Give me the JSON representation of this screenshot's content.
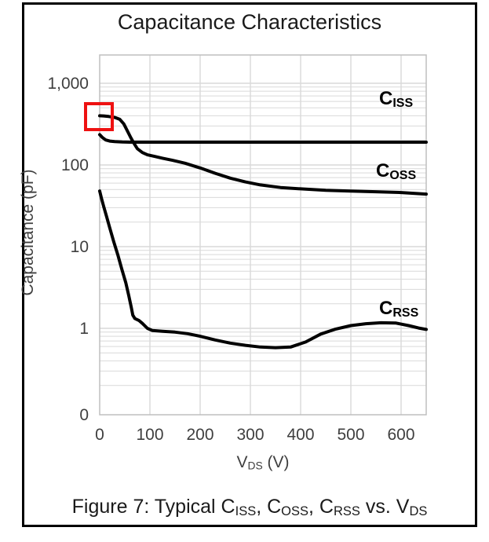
{
  "figure": {
    "title": "Capacitance Characteristics",
    "caption_segments": [
      {
        "t": "Figure 7: Typical C"
      },
      {
        "t": "ISS",
        "sub": true
      },
      {
        "t": ", C"
      },
      {
        "t": "OSS",
        "sub": true
      },
      {
        "t": ", C"
      },
      {
        "t": "RSS",
        "sub": true
      },
      {
        "t": " vs. V"
      },
      {
        "t": "DS",
        "sub": true
      }
    ],
    "border_color": "#000000",
    "background_color": "#ffffff"
  },
  "chart_data": {
    "type": "line",
    "title": "Capacitance Characteristics",
    "ylabel": "Capacitance (pF)",
    "xlabel_segments": [
      {
        "t": "V"
      },
      {
        "t": "DS",
        "sub": true
      },
      {
        "t": " (V)"
      }
    ],
    "x_scale": "linear",
    "y_scale": "log",
    "xlim": [
      0,
      650
    ],
    "ylim": [
      0.087,
      2200
    ],
    "grid": true,
    "grid_color": "#d9d9d9",
    "plot_border_color": "#bfbfbf",
    "line_color": "#000000",
    "tick_label_color": "#3f3f3f",
    "x_ticks": [
      {
        "label": "0",
        "v": 0
      },
      {
        "label": "100",
        "v": 100
      },
      {
        "label": "200",
        "v": 200
      },
      {
        "label": "300",
        "v": 300
      },
      {
        "label": "400",
        "v": 400
      },
      {
        "label": "500",
        "v": 500
      },
      {
        "label": "600",
        "v": 600
      }
    ],
    "y_ticks": [
      {
        "label": "1,000",
        "v": 1000
      },
      {
        "label": "100",
        "v": 100
      },
      {
        "label": "10",
        "v": 10
      },
      {
        "label": "1",
        "v": 1
      },
      {
        "label": "0",
        "v": null
      }
    ],
    "series": [
      {
        "id": "ciss",
        "label_segments": [
          {
            "t": "C"
          },
          {
            "t": "ISS",
            "sub": true
          }
        ],
        "points": [
          [
            0,
            235
          ],
          [
            5,
            218
          ],
          [
            12,
            202
          ],
          [
            20,
            196
          ],
          [
            30,
            193
          ],
          [
            45,
            191
          ],
          [
            60,
            190
          ],
          [
            80,
            190
          ],
          [
            120,
            190
          ],
          [
            200,
            190
          ],
          [
            300,
            190
          ],
          [
            400,
            190
          ],
          [
            500,
            190
          ],
          [
            600,
            190
          ],
          [
            650,
            190
          ]
        ]
      },
      {
        "id": "coss",
        "label_segments": [
          {
            "t": "C"
          },
          {
            "t": "OSS",
            "sub": true
          }
        ],
        "points": [
          [
            0,
            400
          ],
          [
            8,
            398
          ],
          [
            18,
            392
          ],
          [
            30,
            382
          ],
          [
            40,
            362
          ],
          [
            48,
            318
          ],
          [
            55,
            262
          ],
          [
            62,
            215
          ],
          [
            68,
            185
          ],
          [
            75,
            158
          ],
          [
            85,
            142
          ],
          [
            95,
            133
          ],
          [
            110,
            127
          ],
          [
            125,
            121
          ],
          [
            145,
            114
          ],
          [
            170,
            105
          ],
          [
            200,
            92
          ],
          [
            230,
            79
          ],
          [
            260,
            69
          ],
          [
            290,
            62
          ],
          [
            320,
            57
          ],
          [
            360,
            53
          ],
          [
            400,
            51
          ],
          [
            450,
            49
          ],
          [
            500,
            48
          ],
          [
            550,
            47
          ],
          [
            600,
            46
          ],
          [
            650,
            44
          ]
        ]
      },
      {
        "id": "crss",
        "label_segments": [
          {
            "t": "C"
          },
          {
            "t": "RSS",
            "sub": true
          }
        ],
        "points": [
          [
            0,
            48
          ],
          [
            4,
            38
          ],
          [
            8,
            31
          ],
          [
            14,
            23
          ],
          [
            20,
            17
          ],
          [
            28,
            11.5
          ],
          [
            36,
            8
          ],
          [
            44,
            5.3
          ],
          [
            52,
            3.6
          ],
          [
            58,
            2.5
          ],
          [
            63,
            1.8
          ],
          [
            66,
            1.45
          ],
          [
            70,
            1.32
          ],
          [
            78,
            1.25
          ],
          [
            85,
            1.15
          ],
          [
            95,
            1.0
          ],
          [
            105,
            0.94
          ],
          [
            125,
            0.92
          ],
          [
            150,
            0.9
          ],
          [
            175,
            0.86
          ],
          [
            200,
            0.8
          ],
          [
            230,
            0.72
          ],
          [
            260,
            0.66
          ],
          [
            290,
            0.62
          ],
          [
            320,
            0.59
          ],
          [
            350,
            0.58
          ],
          [
            380,
            0.59
          ],
          [
            410,
            0.68
          ],
          [
            440,
            0.85
          ],
          [
            470,
            0.98
          ],
          [
            500,
            1.08
          ],
          [
            530,
            1.14
          ],
          [
            560,
            1.17
          ],
          [
            590,
            1.16
          ],
          [
            615,
            1.08
          ],
          [
            635,
            1.01
          ],
          [
            650,
            0.97
          ]
        ]
      }
    ],
    "annotation": {
      "name": "red-highlight-box",
      "color": "#ee1111",
      "highlights": "Coss value at Vds = 0"
    }
  }
}
